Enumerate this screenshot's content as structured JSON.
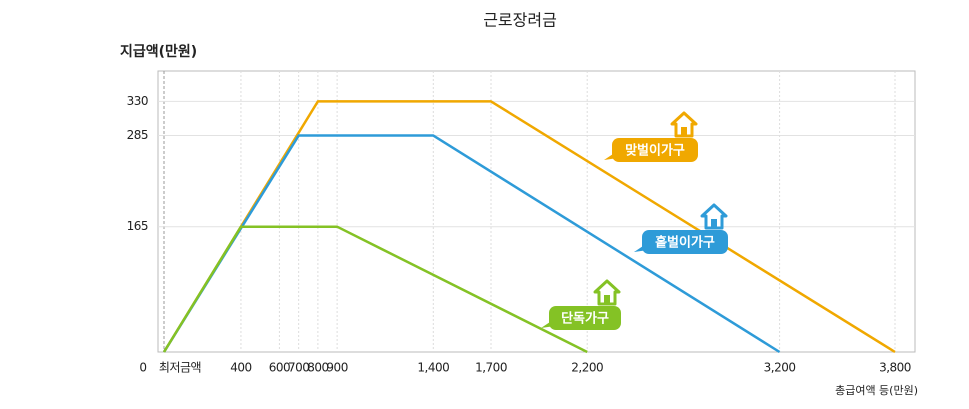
{
  "chart_data": {
    "type": "line",
    "title": "근로장려금",
    "y_label": "지급액(만원)",
    "x_label": "총급여액 등(만원)",
    "origin_label": "0",
    "min_label": "최저금액",
    "series": [
      {
        "name": "맞벌이가구",
        "color": "#f0a800",
        "x": [
          0,
          800,
          1700,
          3800
        ],
        "values": [
          0,
          330,
          330,
          0
        ]
      },
      {
        "name": "홑벌이가구",
        "color": "#2e9bd8",
        "x": [
          0,
          700,
          1400,
          3200
        ],
        "values": [
          0,
          285,
          285,
          0
        ]
      },
      {
        "name": "단독가구",
        "color": "#84c225",
        "x": [
          0,
          400,
          900,
          2200
        ],
        "values": [
          0,
          165,
          165,
          0
        ]
      }
    ],
    "xlim": [
      0,
      3800
    ],
    "xticks": [
      400,
      600,
      700,
      800,
      900,
      {
        "value": 1400,
        "label": "1,400"
      },
      {
        "value": 1700,
        "label": "1,700"
      },
      {
        "value": 2200,
        "label": "2,200"
      },
      {
        "value": 3200,
        "label": "3,200"
      },
      {
        "value": 3800,
        "label": "3,800"
      }
    ],
    "ylim": [
      0,
      370
    ],
    "yticks": [
      165,
      285,
      330
    ],
    "grid": true
  }
}
